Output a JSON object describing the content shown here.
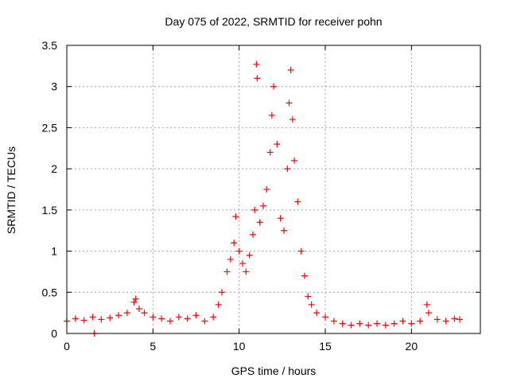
{
  "chart_data": {
    "type": "scatter",
    "title": "Day 075 of 2022, SRMTID for receiver pohn",
    "xlabel": "GPS time / hours",
    "ylabel": "SRMTID / TECUs",
    "xlim": [
      0,
      24.0
    ],
    "ylim": [
      0,
      3.5
    ],
    "x_ticks": [
      0,
      5,
      10,
      15,
      20
    ],
    "y_ticks": [
      0,
      0.5,
      1,
      1.5,
      2,
      2.5,
      3,
      3.5
    ],
    "x_tick_labels": [
      "0",
      "5",
      "10",
      "15",
      "20"
    ],
    "y_tick_labels": [
      "0",
      "0.5",
      "1",
      "1.5",
      "2",
      "2.5",
      "3",
      "3.5"
    ],
    "grid": true,
    "marker": "+",
    "color": "#ff0000",
    "series": [
      {
        "name": "SRMTID",
        "x": [
          0.0,
          0.5,
          1.0,
          1.5,
          1.6,
          2.0,
          2.5,
          3.0,
          3.5,
          3.9,
          4.0,
          4.2,
          4.5,
          5.0,
          5.5,
          6.0,
          6.5,
          7.0,
          7.5,
          8.0,
          8.5,
          8.8,
          9.0,
          9.3,
          9.5,
          9.7,
          9.8,
          10.0,
          10.2,
          10.4,
          10.6,
          10.8,
          10.9,
          11.0,
          11.05,
          11.2,
          11.4,
          11.6,
          11.8,
          11.9,
          12.0,
          12.2,
          12.4,
          12.6,
          12.8,
          12.9,
          13.0,
          13.1,
          13.2,
          13.4,
          13.6,
          13.8,
          14.0,
          14.2,
          14.5,
          15.0,
          15.5,
          16.0,
          16.5,
          17.0,
          17.5,
          18.0,
          18.5,
          19.0,
          19.5,
          20.0,
          20.5,
          20.9,
          21.0,
          21.5,
          22.0,
          22.5,
          22.8
        ],
        "y": [
          0.15,
          0.18,
          0.16,
          0.2,
          0.0,
          0.17,
          0.19,
          0.22,
          0.25,
          0.38,
          0.42,
          0.3,
          0.25,
          0.2,
          0.18,
          0.15,
          0.2,
          0.18,
          0.22,
          0.15,
          0.2,
          0.35,
          0.5,
          0.75,
          0.9,
          1.1,
          1.42,
          1.0,
          0.85,
          0.75,
          0.95,
          1.2,
          1.5,
          3.27,
          3.1,
          1.35,
          1.55,
          1.75,
          2.2,
          2.65,
          3.0,
          2.3,
          1.4,
          1.25,
          2.0,
          2.8,
          3.2,
          2.6,
          2.1,
          1.6,
          1.0,
          0.7,
          0.45,
          0.35,
          0.25,
          0.2,
          0.15,
          0.12,
          0.1,
          0.12,
          0.1,
          0.12,
          0.1,
          0.12,
          0.15,
          0.12,
          0.15,
          0.35,
          0.25,
          0.17,
          0.15,
          0.18,
          0.17
        ]
      }
    ]
  }
}
